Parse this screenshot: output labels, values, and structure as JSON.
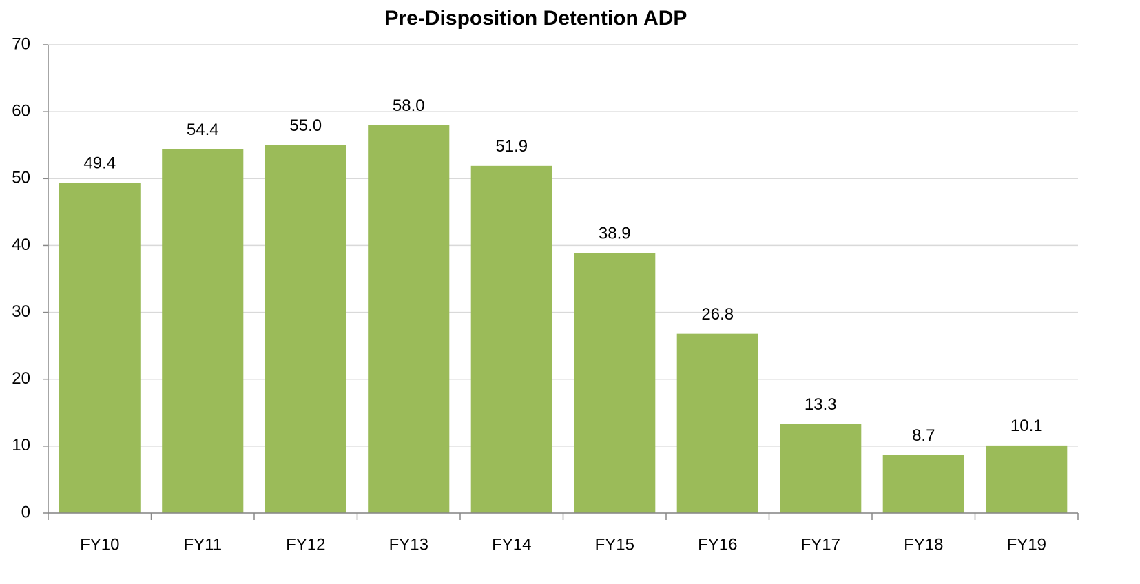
{
  "chart_data": {
    "type": "bar",
    "title": "Pre-Disposition Detention ADP",
    "categories": [
      "FY10",
      "FY11",
      "FY12",
      "FY13",
      "FY14",
      "FY15",
      "FY16",
      "FY17",
      "FY18",
      "FY19"
    ],
    "values": [
      49.4,
      54.4,
      55.0,
      58.0,
      51.9,
      38.9,
      26.8,
      13.3,
      8.7,
      10.1
    ],
    "value_labels": [
      "49.4",
      "54.4",
      "55.0",
      "58.0",
      "51.9",
      "38.9",
      "26.8",
      "13.3",
      "8.7",
      "10.1"
    ],
    "color": "#9bbb59",
    "ylim": [
      0,
      70
    ],
    "yticks": [
      0,
      10,
      20,
      30,
      40,
      50,
      60,
      70
    ],
    "grid": true
  }
}
